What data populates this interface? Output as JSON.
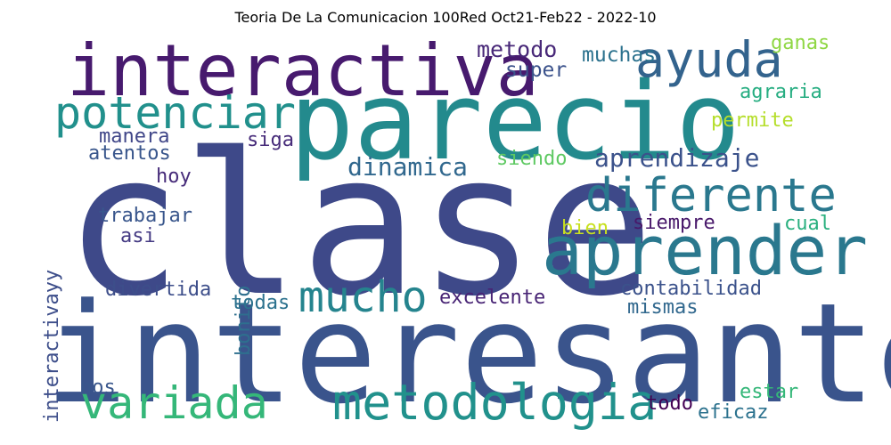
{
  "title": "Teoria De La Comunicacion 100Red Oct21-Feb22 - 2022-10",
  "words": [
    {
      "text": "clase",
      "color": "#3e4989"
    },
    {
      "text": "interesante",
      "color": "#3a548c"
    },
    {
      "text": "parecio",
      "color": "#238a8d"
    },
    {
      "text": "interactiva",
      "color": "#471a6e"
    },
    {
      "text": "aprender",
      "color": "#2a788e"
    },
    {
      "text": "ayuda",
      "color": "#33638d"
    },
    {
      "text": "potenciar",
      "color": "#21908c"
    },
    {
      "text": "diferente",
      "color": "#2a788e"
    },
    {
      "text": "metodologia",
      "color": "#21918c"
    },
    {
      "text": "variada",
      "color": "#35b779"
    },
    {
      "text": "mucho",
      "color": "#25848e"
    },
    {
      "text": "dinamica",
      "color": "#31688e"
    },
    {
      "text": "aprendizaje",
      "color": "#3b528b"
    },
    {
      "text": "metodo",
      "color": "#482878"
    },
    {
      "text": "muchas",
      "color": "#2c728e"
    },
    {
      "text": "super",
      "color": "#3b528b"
    },
    {
      "text": "ganas",
      "color": "#8fd744"
    },
    {
      "text": "agraria",
      "color": "#26ad81"
    },
    {
      "text": "permite",
      "color": "#b5de2b"
    },
    {
      "text": "manera",
      "color": "#404688"
    },
    {
      "text": "atentos",
      "color": "#39568c"
    },
    {
      "text": "siga",
      "color": "#472c7a"
    },
    {
      "text": "siendo",
      "color": "#5ec962"
    },
    {
      "text": "hoy",
      "color": "#472c7a"
    },
    {
      "text": "bonito",
      "color": "#2e6f8e"
    },
    {
      "text": "trabajar",
      "color": "#39568c"
    },
    {
      "text": "asi",
      "color": "#443a83"
    },
    {
      "text": "bien",
      "color": "#c8e020"
    },
    {
      "text": "siempre",
      "color": "#48186a"
    },
    {
      "text": "cual",
      "color": "#2ab07f"
    },
    {
      "text": "interactivayy",
      "color": "#3d4e8a"
    },
    {
      "text": "divertida",
      "color": "#3d4e8a"
    },
    {
      "text": "todas",
      "color": "#2c728e"
    },
    {
      "text": "excelente",
      "color": "#482475"
    },
    {
      "text": "contabilidad",
      "color": "#3b528b"
    },
    {
      "text": "mismas",
      "color": "#31688e"
    },
    {
      "text": "nos",
      "color": "#39568c"
    },
    {
      "text": "todo",
      "color": "#440154"
    },
    {
      "text": "estar",
      "color": "#35b779"
    },
    {
      "text": "eficaz",
      "color": "#2c728e"
    }
  ]
}
